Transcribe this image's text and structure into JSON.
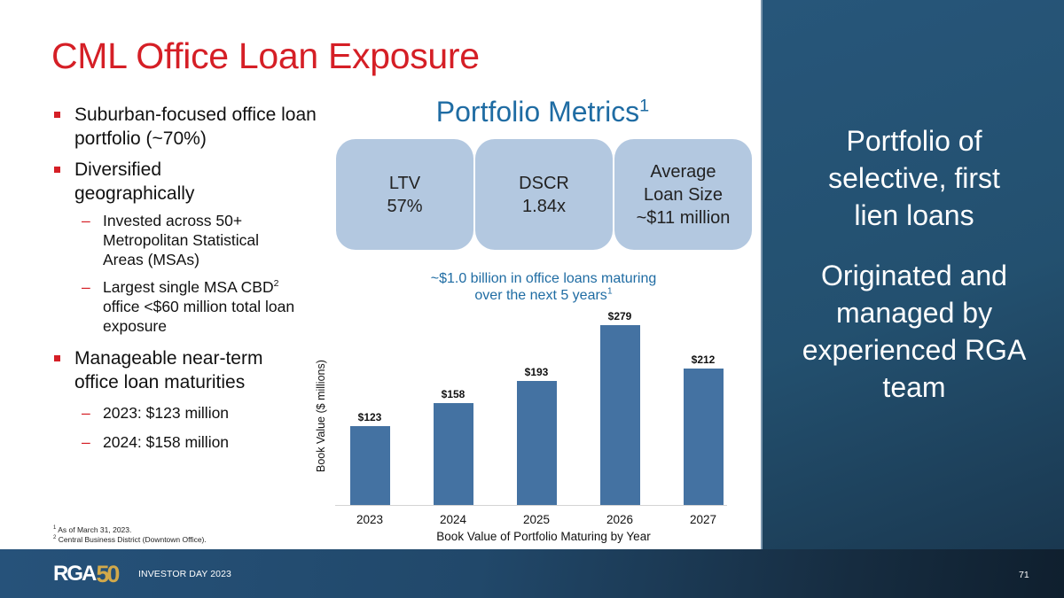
{
  "slide": {
    "title": "CML Office Loan Exposure",
    "page_number": "71",
    "footer_label": "INVESTOR DAY 2023",
    "logo": {
      "text": "RGA",
      "anniversary": "50"
    }
  },
  "bullets": [
    {
      "level": 1,
      "text": "Suburban-focused office loan portfolio (~70%)"
    },
    {
      "level": 1,
      "text": "Diversified geographically"
    },
    {
      "level": 2,
      "text": "Invested across 50+ Metropolitan Statistical Areas (MSAs)"
    },
    {
      "level": 2,
      "text": "Largest single MSA CBD",
      "sup": "2",
      "text_after": " office <$60 million total loan exposure"
    },
    {
      "level": 1,
      "text": "Manageable near-term office loan maturities"
    },
    {
      "level": 2,
      "text": "2023: $123 million"
    },
    {
      "level": 2,
      "text": "2024: $158 million"
    }
  ],
  "footnotes": [
    {
      "num": "1",
      "text": "As of March 31, 2023."
    },
    {
      "num": "2",
      "text": "Central Business District (Downtown Office)."
    }
  ],
  "portfolio_metrics": {
    "title": "Portfolio Metrics",
    "title_sup": "1",
    "cards": [
      {
        "label": "LTV",
        "value": "57%"
      },
      {
        "label": "DSCR",
        "value": "1.84x"
      },
      {
        "label": "Average Loan Size",
        "label_line1": "Average",
        "label_line2": "Loan Size",
        "value": "~$11 million"
      }
    ]
  },
  "right_panel": {
    "statement1": "Portfolio of selective, first lien loans",
    "statement2": "Originated and managed by experienced RGA team"
  },
  "chart": {
    "subtitle_line1": "~$1.0 billion in office loans maturing",
    "subtitle_line2": "over the next 5 years",
    "subtitle_sup": "1"
  },
  "chart_data": {
    "type": "bar",
    "title": "~$1.0 billion in office loans maturing over the next 5 years",
    "categories": [
      "2023",
      "2024",
      "2025",
      "2026",
      "2027"
    ],
    "values": [
      123,
      158,
      193,
      279,
      212
    ],
    "value_labels": [
      "$123",
      "$158",
      "$193",
      "$279",
      "$212"
    ],
    "xlabel": "Book Value of Portfolio Maturing by Year",
    "ylabel": "Book Value ($ millions)",
    "ylim": [
      0,
      279
    ],
    "grid": false,
    "legend": null,
    "bar_color": "#4472a2"
  },
  "colors": {
    "title_red": "#d51f26",
    "accent_blue": "#1f6ca3",
    "card_blue": "#b3c8e0",
    "bar_blue": "#4472a2",
    "panel_navy": "#23506f"
  }
}
